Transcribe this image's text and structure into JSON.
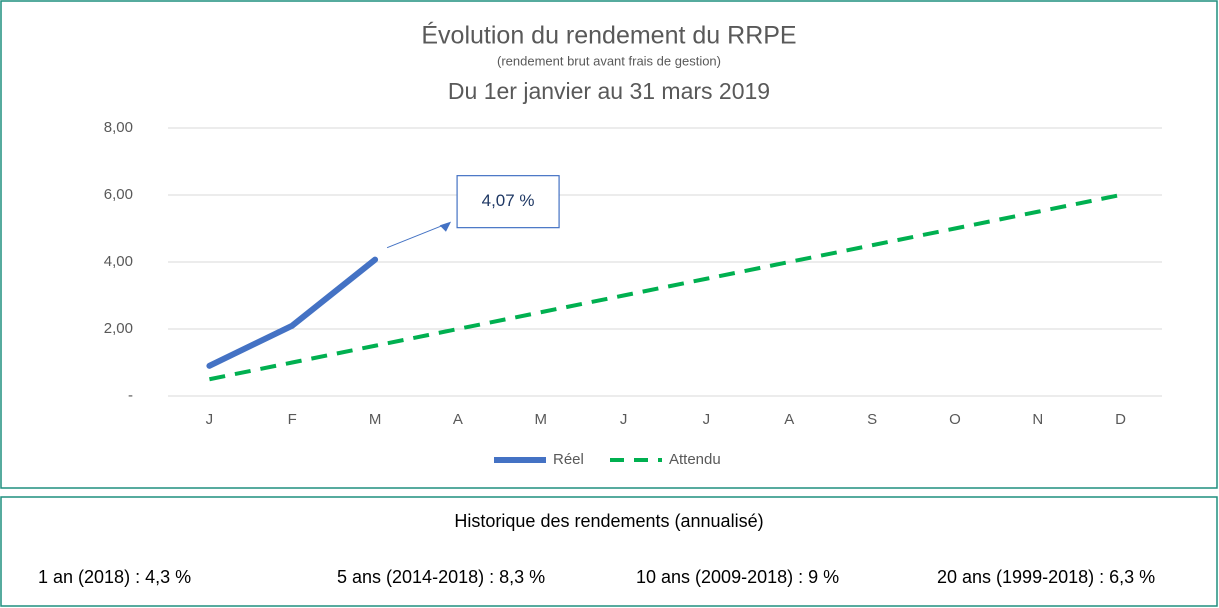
{
  "chart_data": {
    "type": "line",
    "title": "Évolution du rendement du RRPE",
    "subtitle": "(rendement brut avant frais de gestion)",
    "period": "Du 1er janvier au 31 mars 2019",
    "categories": [
      "J",
      "F",
      "M",
      "A",
      "M",
      "J",
      "J",
      "A",
      "S",
      "O",
      "N",
      "D"
    ],
    "series": [
      {
        "name": "Réel",
        "color": "#4472c4",
        "dashed": false,
        "values": [
          0.9,
          2.1,
          4.07,
          null,
          null,
          null,
          null,
          null,
          null,
          null,
          null,
          null
        ],
        "value_labels": [
          null,
          null,
          "4,07 %",
          null,
          null,
          null,
          null,
          null,
          null,
          null,
          null,
          null
        ]
      },
      {
        "name": "Attendu",
        "color": "#00b050",
        "dashed": true,
        "values": [
          0.5,
          1,
          1.5,
          2,
          2.5,
          3,
          3.5,
          4,
          4.5,
          5,
          5.5,
          6
        ]
      }
    ],
    "ylim": [
      0,
      8
    ],
    "yticks": [
      {
        "value": 0,
        "label": "-"
      },
      {
        "value": 2,
        "label": "2,00"
      },
      {
        "value": 4,
        "label": "4,00"
      },
      {
        "value": 6,
        "label": "6,00"
      },
      {
        "value": 8,
        "label": "8,00"
      }
    ],
    "grid": true,
    "legend": "bottom"
  },
  "history": {
    "title": "Historique des rendements (annualisé)",
    "items": [
      "1 an (2018) : 4,3 %",
      "5 ans (2014-2018) : 8,3 %",
      "10 ans (2009-2018) : 9 %",
      "20 ans (1999-2018) : 6,3 %"
    ]
  }
}
